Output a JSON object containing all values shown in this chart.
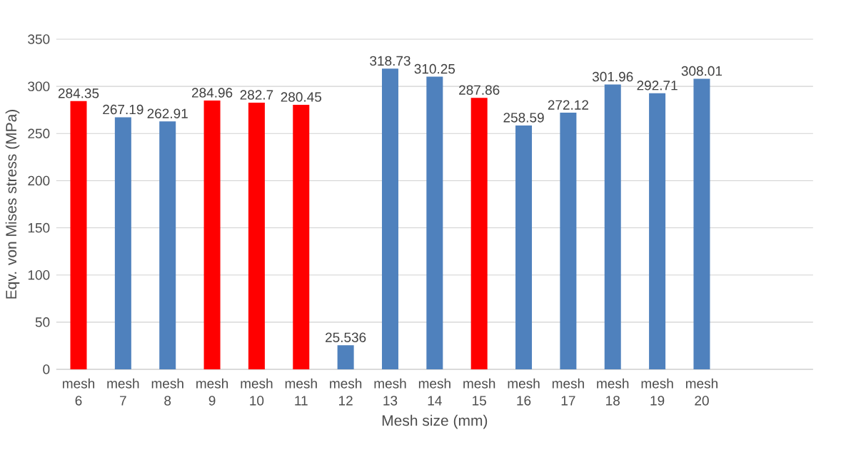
{
  "chart_data": {
    "type": "bar",
    "xlabel": "Mesh size (mm)",
    "ylabel": "Eqv. von Mises stress (MPa)",
    "categories": [
      "mesh 6",
      "mesh 7",
      "mesh 8",
      "mesh 9",
      "mesh 10",
      "mesh 11",
      "mesh 12",
      "mesh 13",
      "mesh 14",
      "mesh 15",
      "mesh 16",
      "mesh 17",
      "mesh 18",
      "mesh 19",
      "mesh 20",
      null,
      null
    ],
    "values": [
      284.35,
      267.19,
      262.91,
      284.96,
      282.7,
      280.45,
      25.536,
      318.73,
      310.25,
      287.86,
      258.59,
      272.12,
      301.96,
      292.71,
      308.01,
      null,
      null
    ],
    "colors": [
      "#ff0000",
      "#4f81bd",
      "#4f81bd",
      "#ff0000",
      "#ff0000",
      "#ff0000",
      "#4f81bd",
      "#4f81bd",
      "#4f81bd",
      "#ff0000",
      "#4f81bd",
      "#4f81bd",
      "#4f81bd",
      "#4f81bd",
      "#4f81bd",
      null,
      null
    ],
    "ylim": [
      0,
      350
    ],
    "yticks": [
      0,
      50,
      100,
      150,
      200,
      250,
      300,
      350
    ],
    "grid": "y",
    "data_labels": true
  }
}
